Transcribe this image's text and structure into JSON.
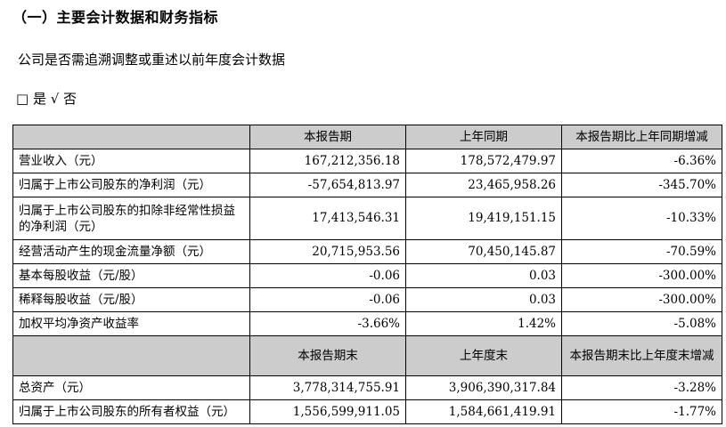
{
  "section_title": "（一）主要会计数据和财务指标",
  "restate_question": "公司是否需追溯调整或重述以前年度会计数据",
  "restate_options": "□ 是 √ 否",
  "table1": {
    "headers": [
      "",
      "本报告期",
      "上年同期",
      "本报告期比上年同期增减"
    ],
    "rows": [
      {
        "label": "营业收入（元）",
        "current": "167,212,356.18",
        "prior": "178,572,479.97",
        "change": "-6.36%"
      },
      {
        "label": "归属于上市公司股东的净利润（元）",
        "current": "-57,654,813.97",
        "prior": "23,465,958.26",
        "change": "-345.70%"
      },
      {
        "label": "归属于上市公司股东的扣除非经常性损益的净利润（元）",
        "current": "17,413,546.31",
        "prior": "19,419,151.15",
        "change": "-10.33%"
      },
      {
        "label": "经营活动产生的现金流量净额（元）",
        "current": "20,715,953.56",
        "prior": "70,450,145.87",
        "change": "-70.59%"
      },
      {
        "label": "基本每股收益（元/股）",
        "current": "-0.06",
        "prior": "0.03",
        "change": "-300.00%"
      },
      {
        "label": "稀释每股收益（元/股）",
        "current": "-0.06",
        "prior": "0.03",
        "change": "-300.00%"
      },
      {
        "label": "加权平均净资产收益率",
        "current": "-3.66%",
        "prior": "1.42%",
        "change": "-5.08%"
      }
    ]
  },
  "table2": {
    "headers": [
      "",
      "本报告期末",
      "上年度末",
      "本报告期末比上年度末增减"
    ],
    "rows": [
      {
        "label": "总资产（元）",
        "current": "3,778,314,755.91",
        "prior": "3,906,390,317.84",
        "change": "-3.28%"
      },
      {
        "label": "归属于上市公司股东的所有者权益（元）",
        "current": "1,556,599,911.05",
        "prior": "1,584,661,419.91",
        "change": "-1.77%"
      }
    ]
  },
  "colors": {
    "header_bg": "#cccccc",
    "border": "#000000",
    "text": "#000000"
  }
}
